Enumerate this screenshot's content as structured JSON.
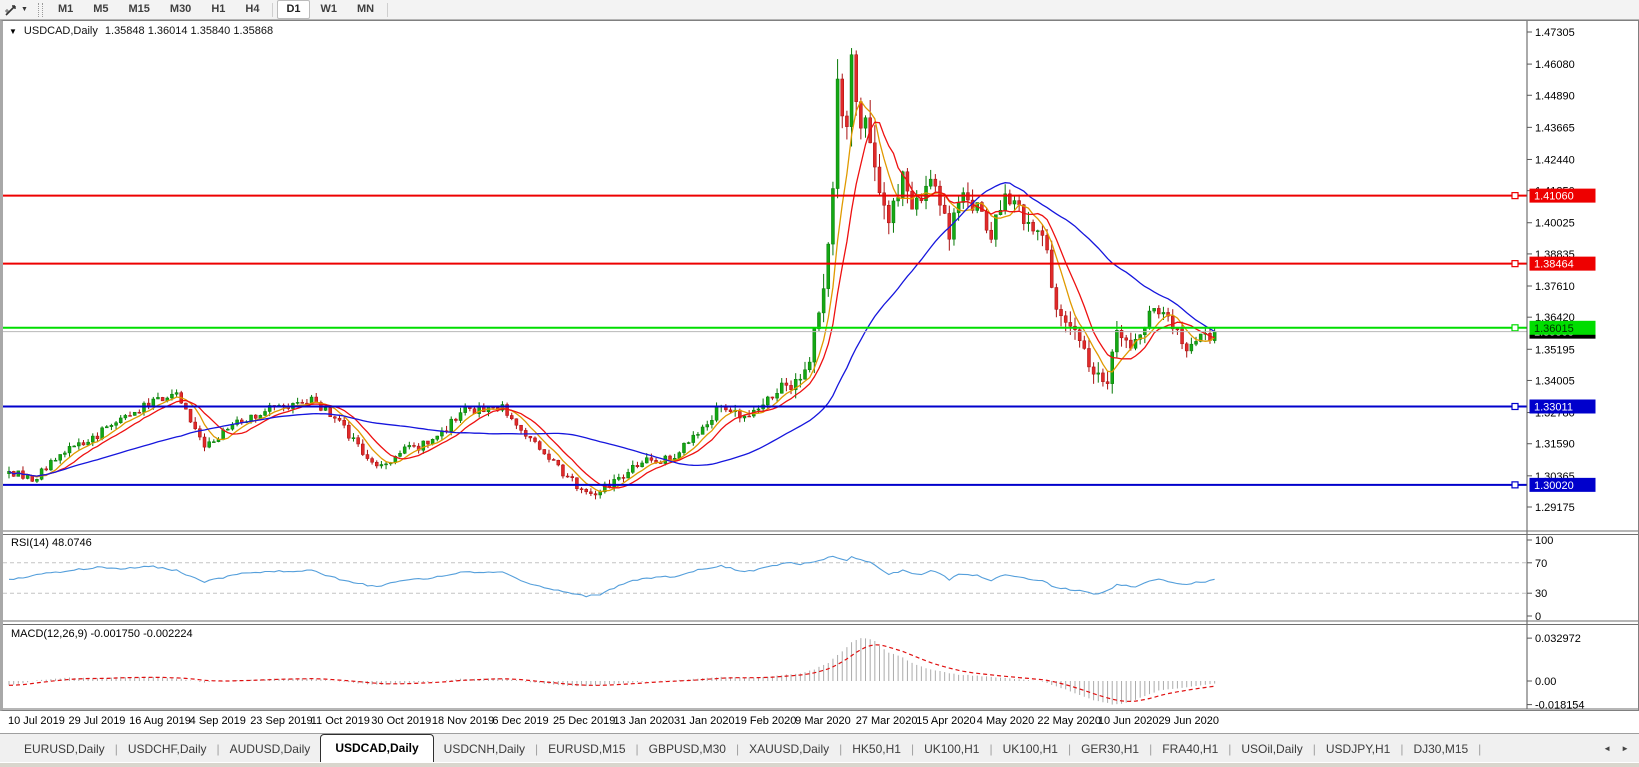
{
  "window": {
    "symbol": "USDCAD,Daily",
    "ohlc": "1.35848 1.36014 1.35840 1.35868"
  },
  "icons": {
    "window_menu": "▼",
    "tool_dropdown": "▼",
    "tab_scroll_left": "◄",
    "tab_scroll_right": "►"
  },
  "toolbar": {
    "timeframes": [
      "M1",
      "M5",
      "M15",
      "M30",
      "H1",
      "H4",
      "D1",
      "W1",
      "MN"
    ],
    "active_timeframe": "D1"
  },
  "tabs": {
    "items": [
      "EURUSD,Daily",
      "USDCHF,Daily",
      "AUDUSD,Daily",
      "USDCAD,Daily",
      "USDCNH,Daily",
      "EURUSD,M15",
      "GBPUSD,M30",
      "XAUUSD,Daily",
      "HK50,H1",
      "UK100,H1",
      "UK100,H1",
      "GER30,H1",
      "FRA40,H1",
      "USOil,Daily",
      "USDJPY,H1",
      "DJ30,M15"
    ],
    "active_index": 3
  },
  "chart_data": {
    "type": "candlestick",
    "symbol": "USDCAD",
    "timeframe": "Daily",
    "panels": [
      {
        "type": "candlestick",
        "candle_count": 260,
        "x_labels": [
          "10 Jul 2019",
          "29 Jul 2019",
          "16 Aug 2019",
          "4 Sep 2019",
          "23 Sep 2019",
          "11 Oct 2019",
          "30 Oct 2019",
          "18 Nov 2019",
          "6 Dec 2019",
          "25 Dec 2019",
          "13 Jan 2020",
          "31 Jan 2020",
          "19 Feb 2020",
          "9 Mar 2020",
          "27 Mar 2020",
          "15 Apr 2020",
          "4 May 2020",
          "22 May 2020",
          "10 Jun 2020",
          "29 Jun 2020"
        ],
        "price_ticks": [
          "1.47305",
          "1.46080",
          "1.44890",
          "1.43665",
          "1.42440",
          "1.41250",
          "1.40025",
          "1.38835",
          "1.37610",
          "1.36420",
          "1.35195",
          "1.34005",
          "1.32780",
          "1.31590",
          "1.30365",
          "1.29175"
        ],
        "levels": [
          {
            "price": 1.4106,
            "label": "1.41060",
            "color": "#ee0000",
            "text_color": "#ffffff"
          },
          {
            "price": 1.38464,
            "label": "1.38464",
            "color": "#ee0000",
            "text_color": "#ffffff"
          },
          {
            "price": 1.36015,
            "label": "1.36015",
            "color": "#00dd00",
            "text_color": "#003300"
          },
          {
            "price": 1.33011,
            "label": "1.33011",
            "color": "#0000cc",
            "text_color": "#ffffff"
          },
          {
            "price": 1.3002,
            "label": "1.30020",
            "color": "#0000cc",
            "text_color": "#ffffff"
          }
        ],
        "current_price": {
          "price": 1.35868,
          "label": "1.35868",
          "box_color": "#000000",
          "text_color": "#ffffff"
        },
        "colors": {
          "up_fill": "#14a814",
          "up_stroke": "#067806",
          "down_fill": "#e02a2a",
          "down_stroke": "#a80f0f"
        },
        "moving_averages": [
          {
            "name": "fast",
            "window": 6,
            "color": "#e09a00"
          },
          {
            "name": "mid",
            "window": 10,
            "color": "#ee1111"
          },
          {
            "name": "slow",
            "window": 38,
            "color": "#1616dd"
          }
        ],
        "close_anchors": [
          [
            0,
            1.3055
          ],
          [
            5,
            1.302
          ],
          [
            11,
            1.312
          ],
          [
            18,
            1.318
          ],
          [
            24,
            1.326
          ],
          [
            30,
            1.331
          ],
          [
            36,
            1.334
          ],
          [
            42,
            1.3145
          ],
          [
            49,
            1.324
          ],
          [
            55,
            1.3285
          ],
          [
            65,
            1.333
          ],
          [
            71,
            1.324
          ],
          [
            79,
            1.306
          ],
          [
            84,
            1.313
          ],
          [
            91,
            1.3165
          ],
          [
            97,
            1.328
          ],
          [
            106,
            1.33
          ],
          [
            112,
            1.317
          ],
          [
            119,
            1.305
          ],
          [
            124,
            1.2965
          ],
          [
            129,
            1.3
          ],
          [
            136,
            1.309
          ],
          [
            143,
            1.3105
          ],
          [
            149,
            1.323
          ],
          [
            153,
            1.33
          ],
          [
            158,
            1.326
          ],
          [
            163,
            1.332
          ],
          [
            167,
            1.34
          ],
          [
            170,
            1.338
          ],
          [
            173,
            1.356
          ],
          [
            176,
            1.39
          ],
          [
            178,
            1.45
          ],
          [
            180,
            1.443
          ],
          [
            181,
            1.462
          ],
          [
            183,
            1.44
          ],
          [
            185,
            1.428
          ],
          [
            187,
            1.408
          ],
          [
            189,
            1.398
          ],
          [
            192,
            1.415
          ],
          [
            194,
            1.409
          ],
          [
            196,
            1.406
          ],
          [
            198,
            1.418
          ],
          [
            200,
            1.41
          ],
          [
            202,
            1.396
          ],
          [
            204,
            1.409
          ],
          [
            208,
            1.407
          ],
          [
            211,
            1.395
          ],
          [
            213,
            1.408
          ],
          [
            215,
            1.409
          ],
          [
            218,
            1.403
          ],
          [
            222,
            1.398
          ],
          [
            225,
            1.369
          ],
          [
            228,
            1.361
          ],
          [
            231,
            1.35
          ],
          [
            233,
            1.339
          ],
          [
            236,
            1.342
          ],
          [
            238,
            1.356
          ],
          [
            240,
            1.3545
          ],
          [
            242,
            1.353
          ],
          [
            245,
            1.366
          ],
          [
            247,
            1.368
          ],
          [
            250,
            1.36
          ],
          [
            253,
            1.353
          ],
          [
            255,
            1.357
          ],
          [
            257,
            1.356
          ],
          [
            259,
            1.3587
          ]
        ],
        "vol_anchors": [
          [
            0,
            0.0025
          ],
          [
            150,
            0.0025
          ],
          [
            165,
            0.0035
          ],
          [
            172,
            0.006
          ],
          [
            176,
            0.011
          ],
          [
            182,
            0.011
          ],
          [
            188,
            0.008
          ],
          [
            196,
            0.0065
          ],
          [
            205,
            0.006
          ],
          [
            215,
            0.005
          ],
          [
            222,
            0.0055
          ],
          [
            228,
            0.006
          ],
          [
            234,
            0.006
          ],
          [
            240,
            0.0045
          ],
          [
            248,
            0.004
          ],
          [
            259,
            0.0035
          ]
        ]
      },
      {
        "type": "line",
        "name": "RSI",
        "label": "RSI(14)",
        "value": "48.0746",
        "ticks": [
          "100",
          "70",
          "30",
          "0"
        ],
        "range": [
          0,
          100
        ],
        "dashed_levels": [
          70,
          30
        ],
        "color": "#559fdb",
        "anchors": [
          [
            0,
            48
          ],
          [
            7,
            55
          ],
          [
            13,
            60
          ],
          [
            19,
            64
          ],
          [
            24,
            62
          ],
          [
            30,
            66
          ],
          [
            36,
            60
          ],
          [
            42,
            45
          ],
          [
            49,
            55
          ],
          [
            55,
            58
          ],
          [
            65,
            60
          ],
          [
            71,
            48
          ],
          [
            79,
            38
          ],
          [
            84,
            47
          ],
          [
            91,
            50
          ],
          [
            97,
            58
          ],
          [
            106,
            57
          ],
          [
            112,
            42
          ],
          [
            119,
            32
          ],
          [
            124,
            26
          ],
          [
            127,
            28
          ],
          [
            131,
            40
          ],
          [
            136,
            50
          ],
          [
            143,
            52
          ],
          [
            149,
            62
          ],
          [
            153,
            66
          ],
          [
            158,
            58
          ],
          [
            163,
            64
          ],
          [
            167,
            70
          ],
          [
            170,
            68
          ],
          [
            173,
            72
          ],
          [
            177,
            78
          ],
          [
            180,
            74
          ],
          [
            181,
            79
          ],
          [
            183,
            74
          ],
          [
            185,
            70
          ],
          [
            187,
            62
          ],
          [
            189,
            55
          ],
          [
            192,
            60
          ],
          [
            194,
            57
          ],
          [
            196,
            55
          ],
          [
            198,
            60
          ],
          [
            200,
            56
          ],
          [
            202,
            48
          ],
          [
            204,
            55
          ],
          [
            208,
            54
          ],
          [
            211,
            47
          ],
          [
            213,
            53
          ],
          [
            215,
            54
          ],
          [
            218,
            50
          ],
          [
            222,
            46
          ],
          [
            225,
            37
          ],
          [
            228,
            35
          ],
          [
            231,
            32
          ],
          [
            233,
            29
          ],
          [
            236,
            33
          ],
          [
            238,
            41
          ],
          [
            240,
            40
          ],
          [
            242,
            39
          ],
          [
            245,
            47
          ],
          [
            247,
            49
          ],
          [
            250,
            44
          ],
          [
            253,
            41
          ],
          [
            255,
            45
          ],
          [
            257,
            44
          ],
          [
            259,
            48.07
          ]
        ]
      },
      {
        "type": "macd",
        "name": "MACD",
        "label": "MACD(12,26,9)",
        "values": "-0.001750 -0.002224",
        "ticks": [
          "0.032972",
          "0.00",
          "-0.018154"
        ],
        "histogram_color": "#ababab",
        "signal_color": "#e01010",
        "anchors": [
          [
            0,
            -0.0035
          ],
          [
            7,
            0.001
          ],
          [
            13,
            0.0025
          ],
          [
            19,
            0.002
          ],
          [
            24,
            0.003
          ],
          [
            30,
            0.003
          ],
          [
            36,
            0.002
          ],
          [
            42,
            -0.001
          ],
          [
            49,
            0.0005
          ],
          [
            55,
            0.0015
          ],
          [
            65,
            0.002
          ],
          [
            71,
            -0.0005
          ],
          [
            79,
            -0.003
          ],
          [
            84,
            -0.002
          ],
          [
            91,
            -0.0005
          ],
          [
            97,
            0.0015
          ],
          [
            106,
            0.002
          ],
          [
            112,
            -0.001
          ],
          [
            119,
            -0.0035
          ],
          [
            124,
            -0.004
          ],
          [
            129,
            -0.0025
          ],
          [
            136,
            -0.0005
          ],
          [
            143,
            0.0005
          ],
          [
            149,
            0.002
          ],
          [
            153,
            0.003
          ],
          [
            158,
            0.0025
          ],
          [
            163,
            0.003
          ],
          [
            167,
            0.005
          ],
          [
            170,
            0.006
          ],
          [
            173,
            0.009
          ],
          [
            176,
            0.014
          ],
          [
            178,
            0.02
          ],
          [
            180,
            0.026
          ],
          [
            181,
            0.03
          ],
          [
            183,
            0.033
          ],
          [
            184,
            0.0329
          ],
          [
            186,
            0.031
          ],
          [
            187,
            0.027
          ],
          [
            189,
            0.022
          ],
          [
            192,
            0.018
          ],
          [
            194,
            0.014
          ],
          [
            196,
            0.011
          ],
          [
            198,
            0.009
          ],
          [
            200,
            0.0075
          ],
          [
            202,
            0.006
          ],
          [
            204,
            0.005
          ],
          [
            208,
            0.004
          ],
          [
            211,
            0.003
          ],
          [
            213,
            0.0025
          ],
          [
            215,
            0.002
          ],
          [
            218,
            0.0012
          ],
          [
            222,
            -0.0005
          ],
          [
            225,
            -0.004
          ],
          [
            228,
            -0.008
          ],
          [
            231,
            -0.012
          ],
          [
            233,
            -0.015
          ],
          [
            236,
            -0.017
          ],
          [
            237,
            -0.018
          ],
          [
            239,
            -0.0175
          ],
          [
            241,
            -0.016
          ],
          [
            243,
            -0.013
          ],
          [
            245,
            -0.01
          ],
          [
            247,
            -0.0075
          ],
          [
            250,
            -0.006
          ],
          [
            253,
            -0.005
          ],
          [
            255,
            -0.004
          ],
          [
            257,
            -0.003
          ],
          [
            259,
            -0.00175
          ]
        ]
      }
    ]
  }
}
